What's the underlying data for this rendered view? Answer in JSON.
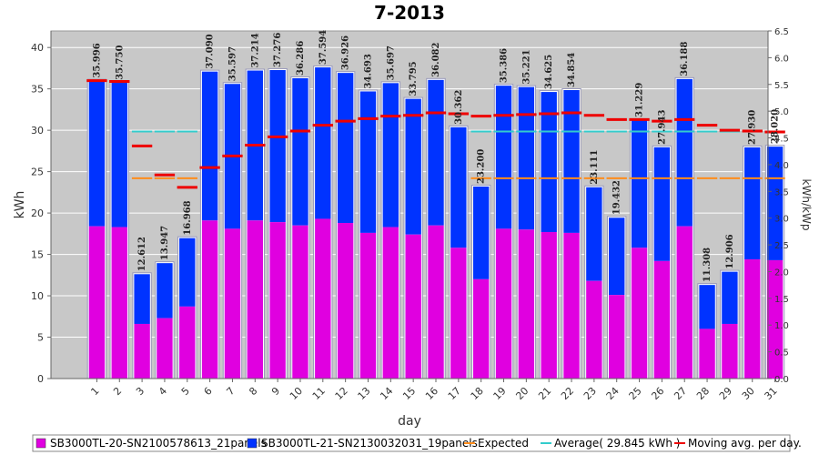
{
  "chart_data": {
    "type": "bar",
    "title": "7-2013",
    "xlabel": "day",
    "ylabel": "kWh",
    "y2label": "kWh/kWp",
    "ylim": [
      0,
      42
    ],
    "y2lim": [
      0,
      6.5
    ],
    "yticks": [
      0,
      5,
      10,
      15,
      20,
      25,
      30,
      35,
      40
    ],
    "y2ticks": [
      "0.0",
      "0.5",
      "1.0",
      "1.5",
      "2.0",
      "2.5",
      "3.0",
      "3.5",
      "4.0",
      "4.5",
      "5.0",
      "5.5",
      "6.0",
      "6.5"
    ],
    "categories": [
      "1",
      "2",
      "3",
      "4",
      "5",
      "6",
      "7",
      "8",
      "9",
      "10",
      "11",
      "12",
      "13",
      "14",
      "15",
      "16",
      "17",
      "18",
      "19",
      "20",
      "21",
      "22",
      "23",
      "24",
      "25",
      "26",
      "27",
      "28",
      "29",
      "30",
      "31"
    ],
    "totals": [
      "35.996",
      "35.750",
      "12.612",
      "13.947",
      "16.968",
      "37.090",
      "35.597",
      "37.214",
      "37.276",
      "36.286",
      "37.594",
      "36.926",
      "34.693",
      "35.697",
      "33.795",
      "36.082",
      "30.362",
      "23.200",
      "35.386",
      "35.221",
      "34.625",
      "34.854",
      "23.111",
      "19.432",
      "31.229",
      "27.943",
      "36.188",
      "11.308",
      "12.906",
      "27.930",
      "28.020"
    ],
    "series": [
      {
        "name": "SB3000TL-20-SN2100578613_21panels",
        "color": "#e000e0",
        "values": [
          18.4,
          18.3,
          6.6,
          7.3,
          8.7,
          19.1,
          18.1,
          19.1,
          18.9,
          18.5,
          19.3,
          18.8,
          17.6,
          18.3,
          17.4,
          18.5,
          15.8,
          12.0,
          18.1,
          18.0,
          17.7,
          17.6,
          11.8,
          10.1,
          15.8,
          14.2,
          18.4,
          6.0,
          6.6,
          14.4,
          14.3
        ]
      },
      {
        "name": "SB3000TL-21-SN2130032031_19panels",
        "color": "#0033ff",
        "values": [
          17.596,
          17.45,
          6.012,
          6.647,
          8.268,
          17.99,
          17.497,
          18.114,
          18.376,
          17.786,
          18.294,
          18.126,
          17.093,
          17.397,
          16.395,
          17.582,
          14.562,
          11.2,
          17.286,
          17.221,
          16.925,
          17.254,
          11.311,
          9.332,
          15.429,
          13.743,
          17.788,
          5.308,
          6.306,
          13.53,
          13.72
        ]
      }
    ],
    "expected": {
      "name": "Expected",
      "color": "#ff8c1a",
      "value": 24.2,
      "days": [
        "3",
        "4",
        "5",
        "18",
        "19",
        "20",
        "21",
        "22",
        "23",
        "24",
        "25",
        "26",
        "27",
        "28",
        "29",
        "30",
        "31"
      ]
    },
    "average": {
      "name": "Average",
      "color": "#33cccc",
      "value": 29.845,
      "days": [
        "3",
        "4",
        "5",
        "18",
        "19",
        "20",
        "21",
        "22",
        "23",
        "24",
        "25",
        "26",
        "27",
        "28",
        "29",
        "30",
        "31"
      ]
    },
    "moving_avg": {
      "name": "Moving avg. per day.",
      "color": "#ee0000",
      "values": [
        36.0,
        35.9,
        28.1,
        24.6,
        23.1,
        25.5,
        26.9,
        28.2,
        29.2,
        29.9,
        30.6,
        31.1,
        31.4,
        31.7,
        31.8,
        32.1,
        32.0,
        31.7,
        31.8,
        31.9,
        32.0,
        32.1,
        31.8,
        31.3,
        31.3,
        31.1,
        31.3,
        30.6,
        30.0,
        29.9,
        29.8
      ]
    },
    "legend": [
      {
        "key": "s1",
        "label": "SB3000TL-20-SN2100578613_21panels",
        "marker": "box",
        "color": "#e000e0"
      },
      {
        "key": "s2",
        "label": "SB3000TL-21-SN2130032031_19panels",
        "marker": "box",
        "color": "#0033ff"
      },
      {
        "key": "exp",
        "label": "Expected",
        "marker": "line",
        "color": "#ff8c1a"
      },
      {
        "key": "avg",
        "label": "Average( 29.845 kWh )",
        "marker": "line",
        "color": "#33cccc"
      },
      {
        "key": "mov",
        "label": "Moving avg. per day.",
        "marker": "line",
        "color": "#ee0000"
      }
    ]
  }
}
